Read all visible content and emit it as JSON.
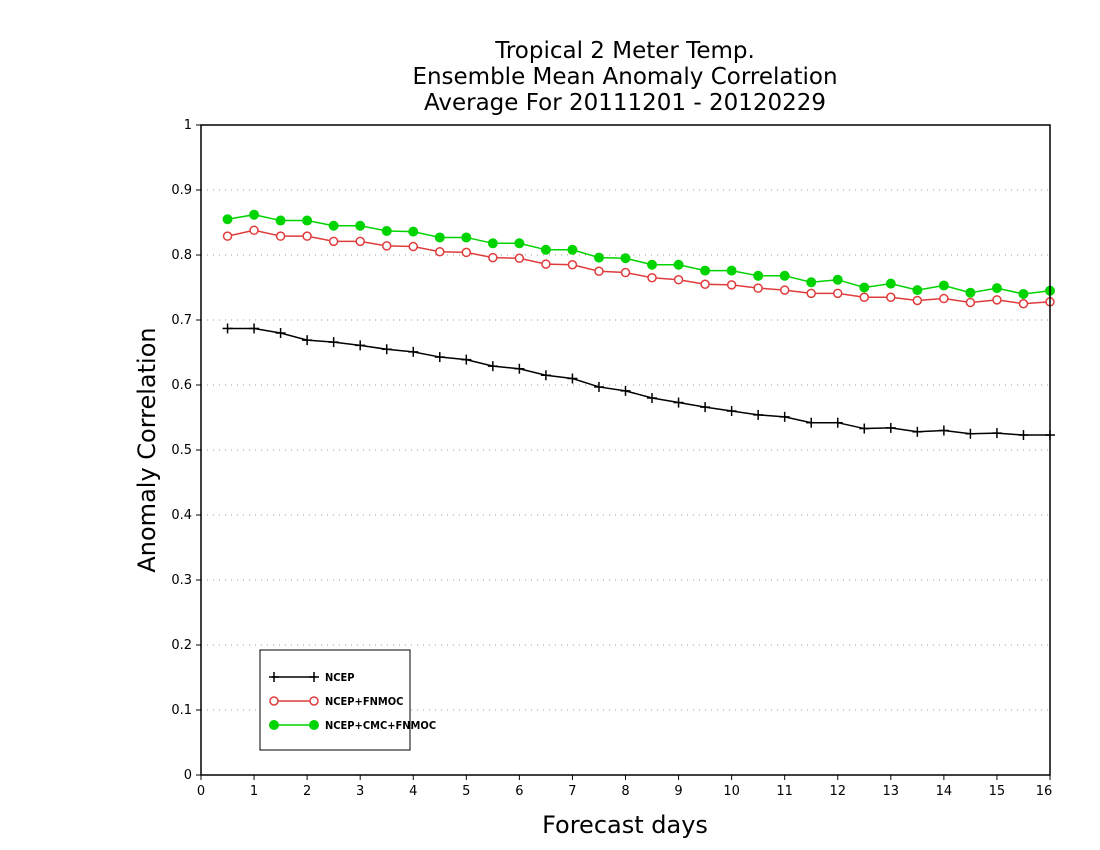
{
  "chart_data": {
    "type": "line",
    "title": [
      "Tropical 2 Meter Temp.",
      "Ensemble Mean Anomaly Correlation",
      "Average For 20111201 - 20120229"
    ],
    "xlabel": "Forecast days",
    "ylabel": "Anomaly Correlation",
    "xlim": [
      0,
      16
    ],
    "ylim": [
      0,
      1
    ],
    "xticks": [
      "0",
      "1",
      "2",
      "3",
      "4",
      "5",
      "6",
      "7",
      "8",
      "9",
      "10",
      "11",
      "12",
      "13",
      "14",
      "15",
      "16"
    ],
    "yticks": [
      "0",
      "0.1",
      "0.2",
      "0.3",
      "0.4",
      "0.5",
      "0.6",
      "0.7",
      "0.8",
      "0.9",
      "1"
    ],
    "grid": "dotted horizontal",
    "legend_position": "bottom-left",
    "x": [
      0.5,
      1,
      1.5,
      2,
      2.5,
      3,
      3.5,
      4,
      4.5,
      5,
      5.5,
      6,
      6.5,
      7,
      7.5,
      8,
      8.5,
      9,
      9.5,
      10,
      10.5,
      11,
      11.5,
      12,
      12.5,
      13,
      13.5,
      14,
      14.5,
      15,
      15.5,
      16
    ],
    "series": [
      {
        "name": "NCEP",
        "color": "#000000",
        "marker": "plus",
        "values": [
          0.687,
          0.687,
          0.68,
          0.669,
          0.666,
          0.661,
          0.655,
          0.651,
          0.643,
          0.639,
          0.629,
          0.625,
          0.615,
          0.61,
          0.597,
          0.591,
          0.58,
          0.573,
          0.566,
          0.56,
          0.554,
          0.551,
          0.542,
          0.542,
          0.533,
          0.534,
          0.528,
          0.53,
          0.525,
          0.526,
          0.523,
          0.523
        ]
      },
      {
        "name": "NCEP+FNMOC",
        "color": "#e03c3c",
        "marker": "open-circle",
        "values": [
          0.829,
          0.838,
          0.829,
          0.829,
          0.821,
          0.821,
          0.814,
          0.813,
          0.805,
          0.804,
          0.796,
          0.795,
          0.786,
          0.785,
          0.775,
          0.773,
          0.765,
          0.762,
          0.755,
          0.754,
          0.749,
          0.746,
          0.741,
          0.741,
          0.735,
          0.735,
          0.73,
          0.733,
          0.727,
          0.731,
          0.725,
          0.728
        ]
      },
      {
        "name": "NCEP+CMC+FNMOC",
        "color": "#00d400",
        "marker": "filled-circle",
        "values": [
          0.855,
          0.862,
          0.853,
          0.853,
          0.845,
          0.845,
          0.837,
          0.836,
          0.827,
          0.827,
          0.818,
          0.818,
          0.808,
          0.808,
          0.796,
          0.795,
          0.785,
          0.785,
          0.776,
          0.776,
          0.768,
          0.768,
          0.758,
          0.762,
          0.75,
          0.756,
          0.746,
          0.753,
          0.742,
          0.749,
          0.74,
          0.745
        ]
      }
    ]
  }
}
